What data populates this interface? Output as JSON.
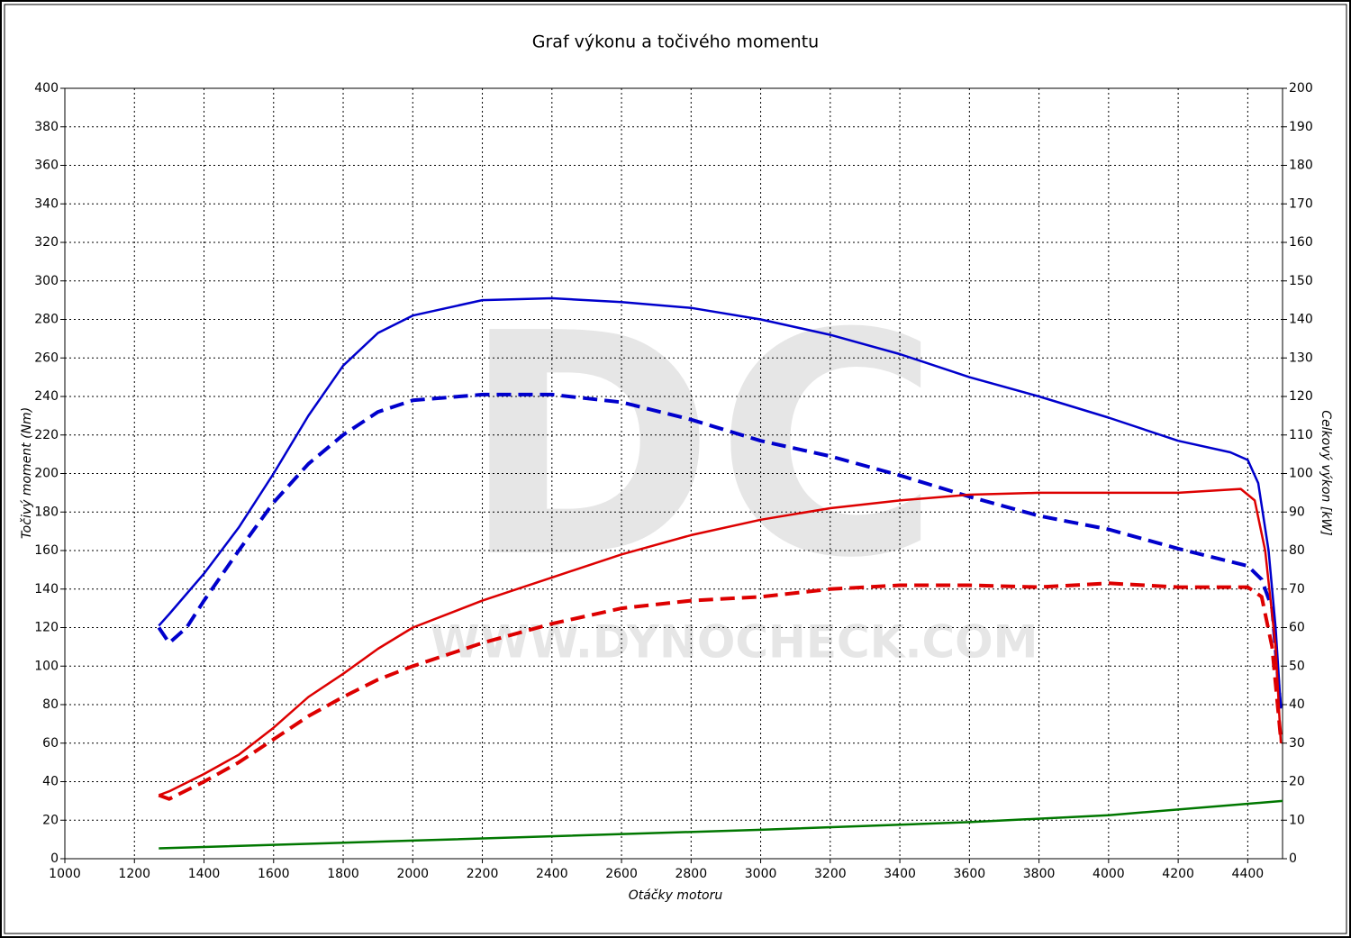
{
  "chart_data": {
    "type": "line",
    "title": "Graf výkonu a točivého momentu",
    "x_label": "Otáčky motoru",
    "y_label": "Točivý moment (Nm)",
    "y2_label": "Celkový výkon [kW]",
    "watermark": [
      "DC",
      "WWW.DYNOCHECK.COM"
    ],
    "grid": true,
    "xlim": [
      1000,
      4500
    ],
    "xticks": [
      1000,
      1200,
      1400,
      1600,
      1800,
      2000,
      2200,
      2400,
      2600,
      2800,
      3000,
      3200,
      3400,
      3600,
      3800,
      4000,
      4200,
      4400
    ],
    "ylim": [
      0,
      400
    ],
    "yticks": [
      0,
      20,
      40,
      60,
      80,
      100,
      120,
      140,
      160,
      180,
      200,
      220,
      240,
      260,
      280,
      300,
      320,
      340,
      360,
      380,
      400
    ],
    "y2lim": [
      0,
      200
    ],
    "y2ticks": [
      0,
      10,
      20,
      30,
      40,
      50,
      60,
      70,
      80,
      90,
      100,
      110,
      120,
      130,
      140,
      150,
      160,
      170,
      180,
      190,
      200
    ],
    "series": [
      {
        "color": "#0000cc",
        "dashed": false,
        "axis": "y",
        "x": [
          1270,
          1300,
          1400,
          1500,
          1600,
          1700,
          1800,
          1900,
          2000,
          2200,
          2400,
          2600,
          2800,
          3000,
          3200,
          3400,
          3600,
          3800,
          4000,
          4200,
          4350,
          4400,
          4430,
          4460,
          4480,
          4495
        ],
        "values": [
          121,
          127,
          148,
          172,
          200,
          230,
          256,
          273,
          282,
          290,
          291,
          289,
          286,
          280,
          272,
          262,
          250,
          240,
          229,
          217,
          211,
          207,
          195,
          160,
          120,
          78
        ]
      },
      {
        "color": "#0000cc",
        "dashed": true,
        "axis": "y",
        "x": [
          1270,
          1300,
          1350,
          1400,
          1500,
          1600,
          1700,
          1800,
          1900,
          2000,
          2200,
          2400,
          2600,
          2800,
          3000,
          3200,
          3400,
          3600,
          3800,
          4000,
          4200,
          4400,
          4440,
          4470,
          4495
        ],
        "values": [
          120,
          112,
          120,
          134,
          160,
          185,
          205,
          220,
          232,
          238,
          241,
          241,
          237,
          228,
          217,
          209,
          199,
          188,
          178,
          171,
          161,
          152,
          145,
          130,
          76
        ]
      },
      {
        "color": "#dd0000",
        "dashed": false,
        "axis": "y2",
        "x": [
          1270,
          1300,
          1400,
          1500,
          1600,
          1700,
          1800,
          1900,
          2000,
          2200,
          2400,
          2600,
          2800,
          3000,
          3200,
          3400,
          3600,
          3800,
          4000,
          4200,
          4380,
          4420,
          4450,
          4480,
          4495
        ],
        "values": [
          16.5,
          17.5,
          22,
          27,
          34,
          42,
          48,
          54.5,
          60,
          67,
          73,
          79,
          84,
          88,
          91,
          93,
          94.5,
          95,
          95,
          95,
          96,
          93,
          80,
          55,
          30
        ]
      },
      {
        "color": "#dd0000",
        "dashed": true,
        "axis": "y2",
        "x": [
          1270,
          1300,
          1400,
          1500,
          1600,
          1700,
          1800,
          1900,
          2000,
          2200,
          2400,
          2600,
          2800,
          3000,
          3200,
          3400,
          3600,
          3800,
          4000,
          4200,
          4400,
          4440,
          4470,
          4495
        ],
        "values": [
          16.5,
          15.5,
          20,
          25,
          31,
          37,
          42,
          46.5,
          50,
          56,
          61,
          65,
          67,
          68,
          70,
          71,
          71,
          70.5,
          71.5,
          70.5,
          70.5,
          68,
          55,
          31
        ]
      },
      {
        "color": "#007700",
        "dashed": false,
        "axis": "y2",
        "x": [
          1270,
          2000,
          3000,
          3600,
          4000,
          4500
        ],
        "values": [
          2.7,
          4.7,
          7.5,
          9.5,
          11.3,
          15
        ]
      }
    ]
  }
}
